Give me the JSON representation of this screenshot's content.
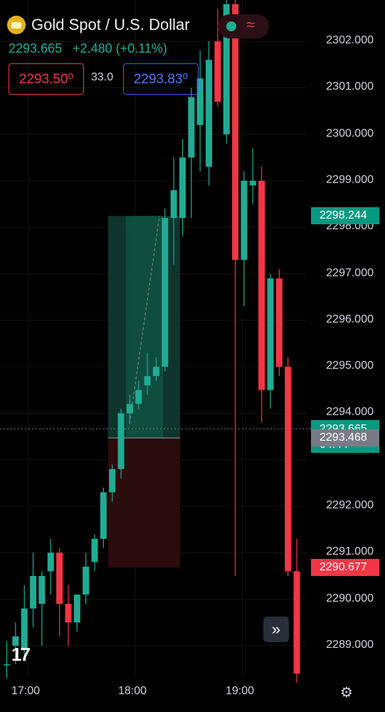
{
  "header": {
    "title": "Gold Spot / U.S. Dollar",
    "last_price": "2293.665",
    "change": "+2.480 (+0.11%)",
    "bid": "2293.50⁰",
    "spread": "33.0",
    "ask": "2293.83⁰"
  },
  "colors": {
    "up": "#22ab94",
    "down": "#f23645",
    "background": "#000000"
  },
  "price_axis": {
    "labels": [
      "2302.000",
      "2301.000",
      "2300.000",
      "2299.000",
      "2298.000",
      "2297.000",
      "2296.000",
      "2295.000",
      "2294.000",
      "2292.000",
      "2291.000",
      "2290.000",
      "2289.000"
    ],
    "tags": [
      {
        "text": "2298.244",
        "price": 2298.244,
        "color": "#089981"
      },
      {
        "text": "2293.665",
        "sub": "04:44",
        "price": 2293.665,
        "color": "#089981"
      },
      {
        "text": "2293.468",
        "price": 2293.468,
        "color": "#787b86"
      },
      {
        "text": "2290.677",
        "price": 2290.677,
        "color": "#f23645"
      }
    ]
  },
  "time_axis": {
    "labels": [
      "17:00",
      "18:00",
      "19:00"
    ]
  },
  "position_tool": {
    "entry": 2293.468,
    "target": 2298.244,
    "stop": 2290.677
  },
  "chart_data": {
    "type": "candlestick",
    "ylim": [
      2288.4,
      2303.0
    ],
    "candles": [
      {
        "o": 2288.6,
        "h": 2289.1,
        "l": 2288.3,
        "c": 2288.6
      },
      {
        "o": 2289.0,
        "h": 2289.5,
        "l": 2288.6,
        "c": 2289.2
      },
      {
        "o": 2288.9,
        "h": 2290.3,
        "l": 2288.7,
        "c": 2289.8
      },
      {
        "o": 2289.8,
        "h": 2291.0,
        "l": 2289.4,
        "c": 2290.5
      },
      {
        "o": 2289.9,
        "h": 2290.6,
        "l": 2289.0,
        "c": 2290.5
      },
      {
        "o": 2290.6,
        "h": 2291.3,
        "l": 2290.1,
        "c": 2291.0
      },
      {
        "o": 2291.0,
        "h": 2291.1,
        "l": 2289.2,
        "c": 2289.9
      },
      {
        "o": 2289.9,
        "h": 2290.3,
        "l": 2289.0,
        "c": 2289.5
      },
      {
        "o": 2289.5,
        "h": 2290.1,
        "l": 2289.3,
        "c": 2290.1
      },
      {
        "o": 2290.1,
        "h": 2291.0,
        "l": 2289.9,
        "c": 2290.7
      },
      {
        "o": 2290.8,
        "h": 2291.4,
        "l": 2290.6,
        "c": 2291.3
      },
      {
        "o": 2291.3,
        "h": 2292.4,
        "l": 2291.1,
        "c": 2292.3
      },
      {
        "o": 2292.3,
        "h": 2292.9,
        "l": 2292.1,
        "c": 2292.8
      },
      {
        "o": 2292.8,
        "h": 2294.1,
        "l": 2292.6,
        "c": 2294.0
      },
      {
        "o": 2294.0,
        "h": 2294.4,
        "l": 2293.8,
        "c": 2294.2
      },
      {
        "o": 2294.2,
        "h": 2294.7,
        "l": 2294.1,
        "c": 2294.5
      },
      {
        "o": 2294.6,
        "h": 2295.3,
        "l": 2294.4,
        "c": 2294.8
      },
      {
        "o": 2294.8,
        "h": 2295.2,
        "l": 2294.7,
        "c": 2295.0
      },
      {
        "o": 2295.0,
        "h": 2298.4,
        "l": 2294.9,
        "c": 2298.2
      },
      {
        "o": 2298.2,
        "h": 2299.5,
        "l": 2297.2,
        "c": 2298.8
      },
      {
        "o": 2298.2,
        "h": 2299.9,
        "l": 2297.8,
        "c": 2299.5
      },
      {
        "o": 2299.5,
        "h": 2301.0,
        "l": 2298.2,
        "c": 2300.8
      },
      {
        "o": 2300.2,
        "h": 2301.8,
        "l": 2299.2,
        "c": 2301.2
      },
      {
        "o": 2299.3,
        "h": 2302.0,
        "l": 2298.9,
        "c": 2301.6
      },
      {
        "o": 2302.0,
        "h": 2302.7,
        "l": 2300.6,
        "c": 2300.7
      },
      {
        "o": 2300.0,
        "h": 2303.0,
        "l": 2299.8,
        "c": 2302.8
      },
      {
        "o": 2302.8,
        "h": 2302.9,
        "l": 2290.5,
        "c": 2297.3
      },
      {
        "o": 2297.3,
        "h": 2299.2,
        "l": 2296.3,
        "c": 2299.0
      },
      {
        "o": 2298.9,
        "h": 2299.7,
        "l": 2298.5,
        "c": 2299.0
      },
      {
        "o": 2299.0,
        "h": 2299.3,
        "l": 2293.8,
        "c": 2294.5
      },
      {
        "o": 2294.5,
        "h": 2297.0,
        "l": 2294.1,
        "c": 2296.9
      },
      {
        "o": 2296.9,
        "h": 2297.1,
        "l": 2294.8,
        "c": 2295.0
      },
      {
        "o": 2295.0,
        "h": 2295.2,
        "l": 2290.5,
        "c": 2290.6
      },
      {
        "o": 2290.6,
        "h": 2291.3,
        "l": 2288.2,
        "c": 2288.4
      }
    ]
  }
}
